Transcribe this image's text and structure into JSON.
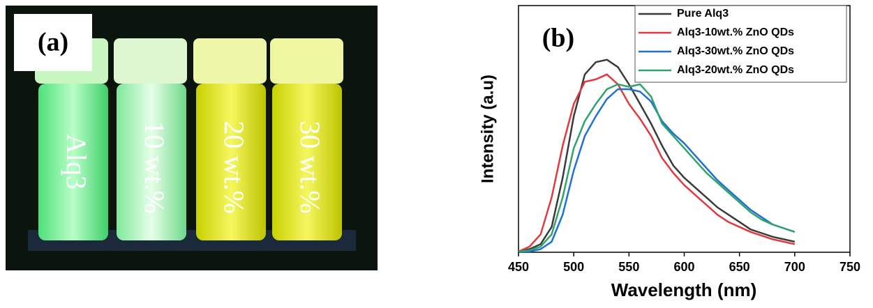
{
  "photo": {
    "label": "(a)",
    "vials": [
      "Alq3",
      "10 wt.%",
      "20 wt.%",
      "30 wt.%"
    ]
  },
  "chart_data": {
    "type": "line",
    "panel_label": "(b)",
    "xlabel": "Wavelength (nm)",
    "ylabel": "Intensity (a.u)",
    "x": [
      450,
      460,
      470,
      480,
      490,
      500,
      510,
      520,
      530,
      540,
      550,
      560,
      570,
      580,
      590,
      600,
      610,
      620,
      630,
      640,
      650,
      660,
      670,
      680,
      690,
      700
    ],
    "series": [
      {
        "name": "Pure Alq3",
        "color": "#3a3a3a",
        "values": [
          0,
          0.01,
          0.03,
          0.1,
          0.3,
          0.55,
          0.72,
          0.77,
          0.78,
          0.75,
          0.68,
          0.6,
          0.52,
          0.43,
          0.35,
          0.3,
          0.26,
          0.22,
          0.18,
          0.15,
          0.12,
          0.09,
          0.075,
          0.06,
          0.05,
          0.04
        ]
      },
      {
        "name": "Alq3-10wt.% ZnO QDs",
        "color": "#e0393e",
        "values": [
          0,
          0.02,
          0.07,
          0.22,
          0.43,
          0.6,
          0.69,
          0.7,
          0.72,
          0.68,
          0.6,
          0.54,
          0.47,
          0.38,
          0.32,
          0.27,
          0.23,
          0.19,
          0.15,
          0.12,
          0.1,
          0.08,
          0.065,
          0.05,
          0.04,
          0.03
        ]
      },
      {
        "name": "Alq3-30wt.% ZnO QDs",
        "color": "#1f6fd6",
        "values": [
          0,
          0,
          0.01,
          0.04,
          0.15,
          0.33,
          0.47,
          0.55,
          0.62,
          0.66,
          0.66,
          0.65,
          0.61,
          0.53,
          0.48,
          0.44,
          0.39,
          0.34,
          0.29,
          0.25,
          0.21,
          0.17,
          0.14,
          0.11,
          0.095,
          0.08
        ]
      },
      {
        "name": "Alq3-20wt.% ZnO QDs",
        "color": "#2fa36b",
        "values": [
          0,
          0.005,
          0.02,
          0.07,
          0.22,
          0.42,
          0.53,
          0.6,
          0.66,
          0.68,
          0.67,
          0.68,
          0.63,
          0.52,
          0.47,
          0.42,
          0.37,
          0.32,
          0.28,
          0.24,
          0.2,
          0.16,
          0.13,
          0.11,
          0.095,
          0.08
        ]
      }
    ],
    "xlim": [
      450,
      750
    ],
    "xticks": [
      450,
      500,
      550,
      600,
      650,
      700,
      750
    ],
    "ylim": [
      0,
      1
    ]
  }
}
